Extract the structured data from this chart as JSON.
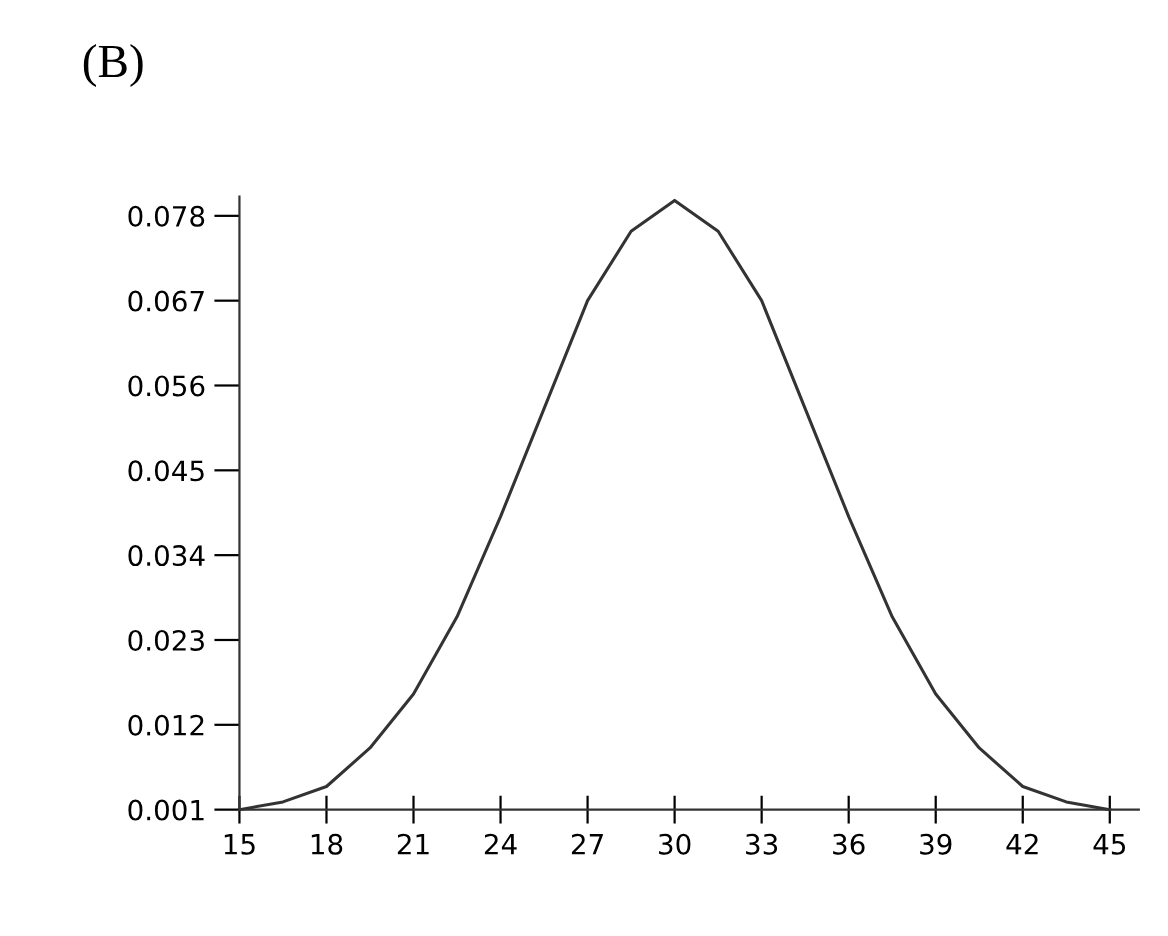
{
  "chart_data": {
    "type": "line",
    "title": "(B)",
    "x": [
      15,
      16.5,
      18,
      19.5,
      21,
      22.5,
      24,
      25.5,
      27,
      28.5,
      30,
      31.5,
      33,
      34.5,
      36,
      37.5,
      39,
      40.5,
      42,
      43.5,
      45
    ],
    "series": [
      {
        "color": "#333333",
        "values": [
          0.001,
          0.002,
          0.004,
          0.009,
          0.016,
          0.026,
          0.039,
          0.053,
          0.067,
          0.076,
          0.08,
          0.076,
          0.067,
          0.053,
          0.039,
          0.026,
          0.016,
          0.009,
          0.004,
          0.002,
          0.001
        ]
      }
    ],
    "xlim": [
      15,
      46
    ],
    "ylim": [
      0.001,
      0.0805
    ],
    "xticks": [
      15,
      18,
      21,
      24,
      27,
      30,
      33,
      36,
      39,
      42,
      45
    ],
    "yticks": [
      0.001,
      0.012,
      0.023,
      0.034,
      0.045,
      0.056,
      0.067,
      0.078
    ],
    "grid": false,
    "legend": false,
    "marker": "none",
    "line_style": "solid"
  }
}
